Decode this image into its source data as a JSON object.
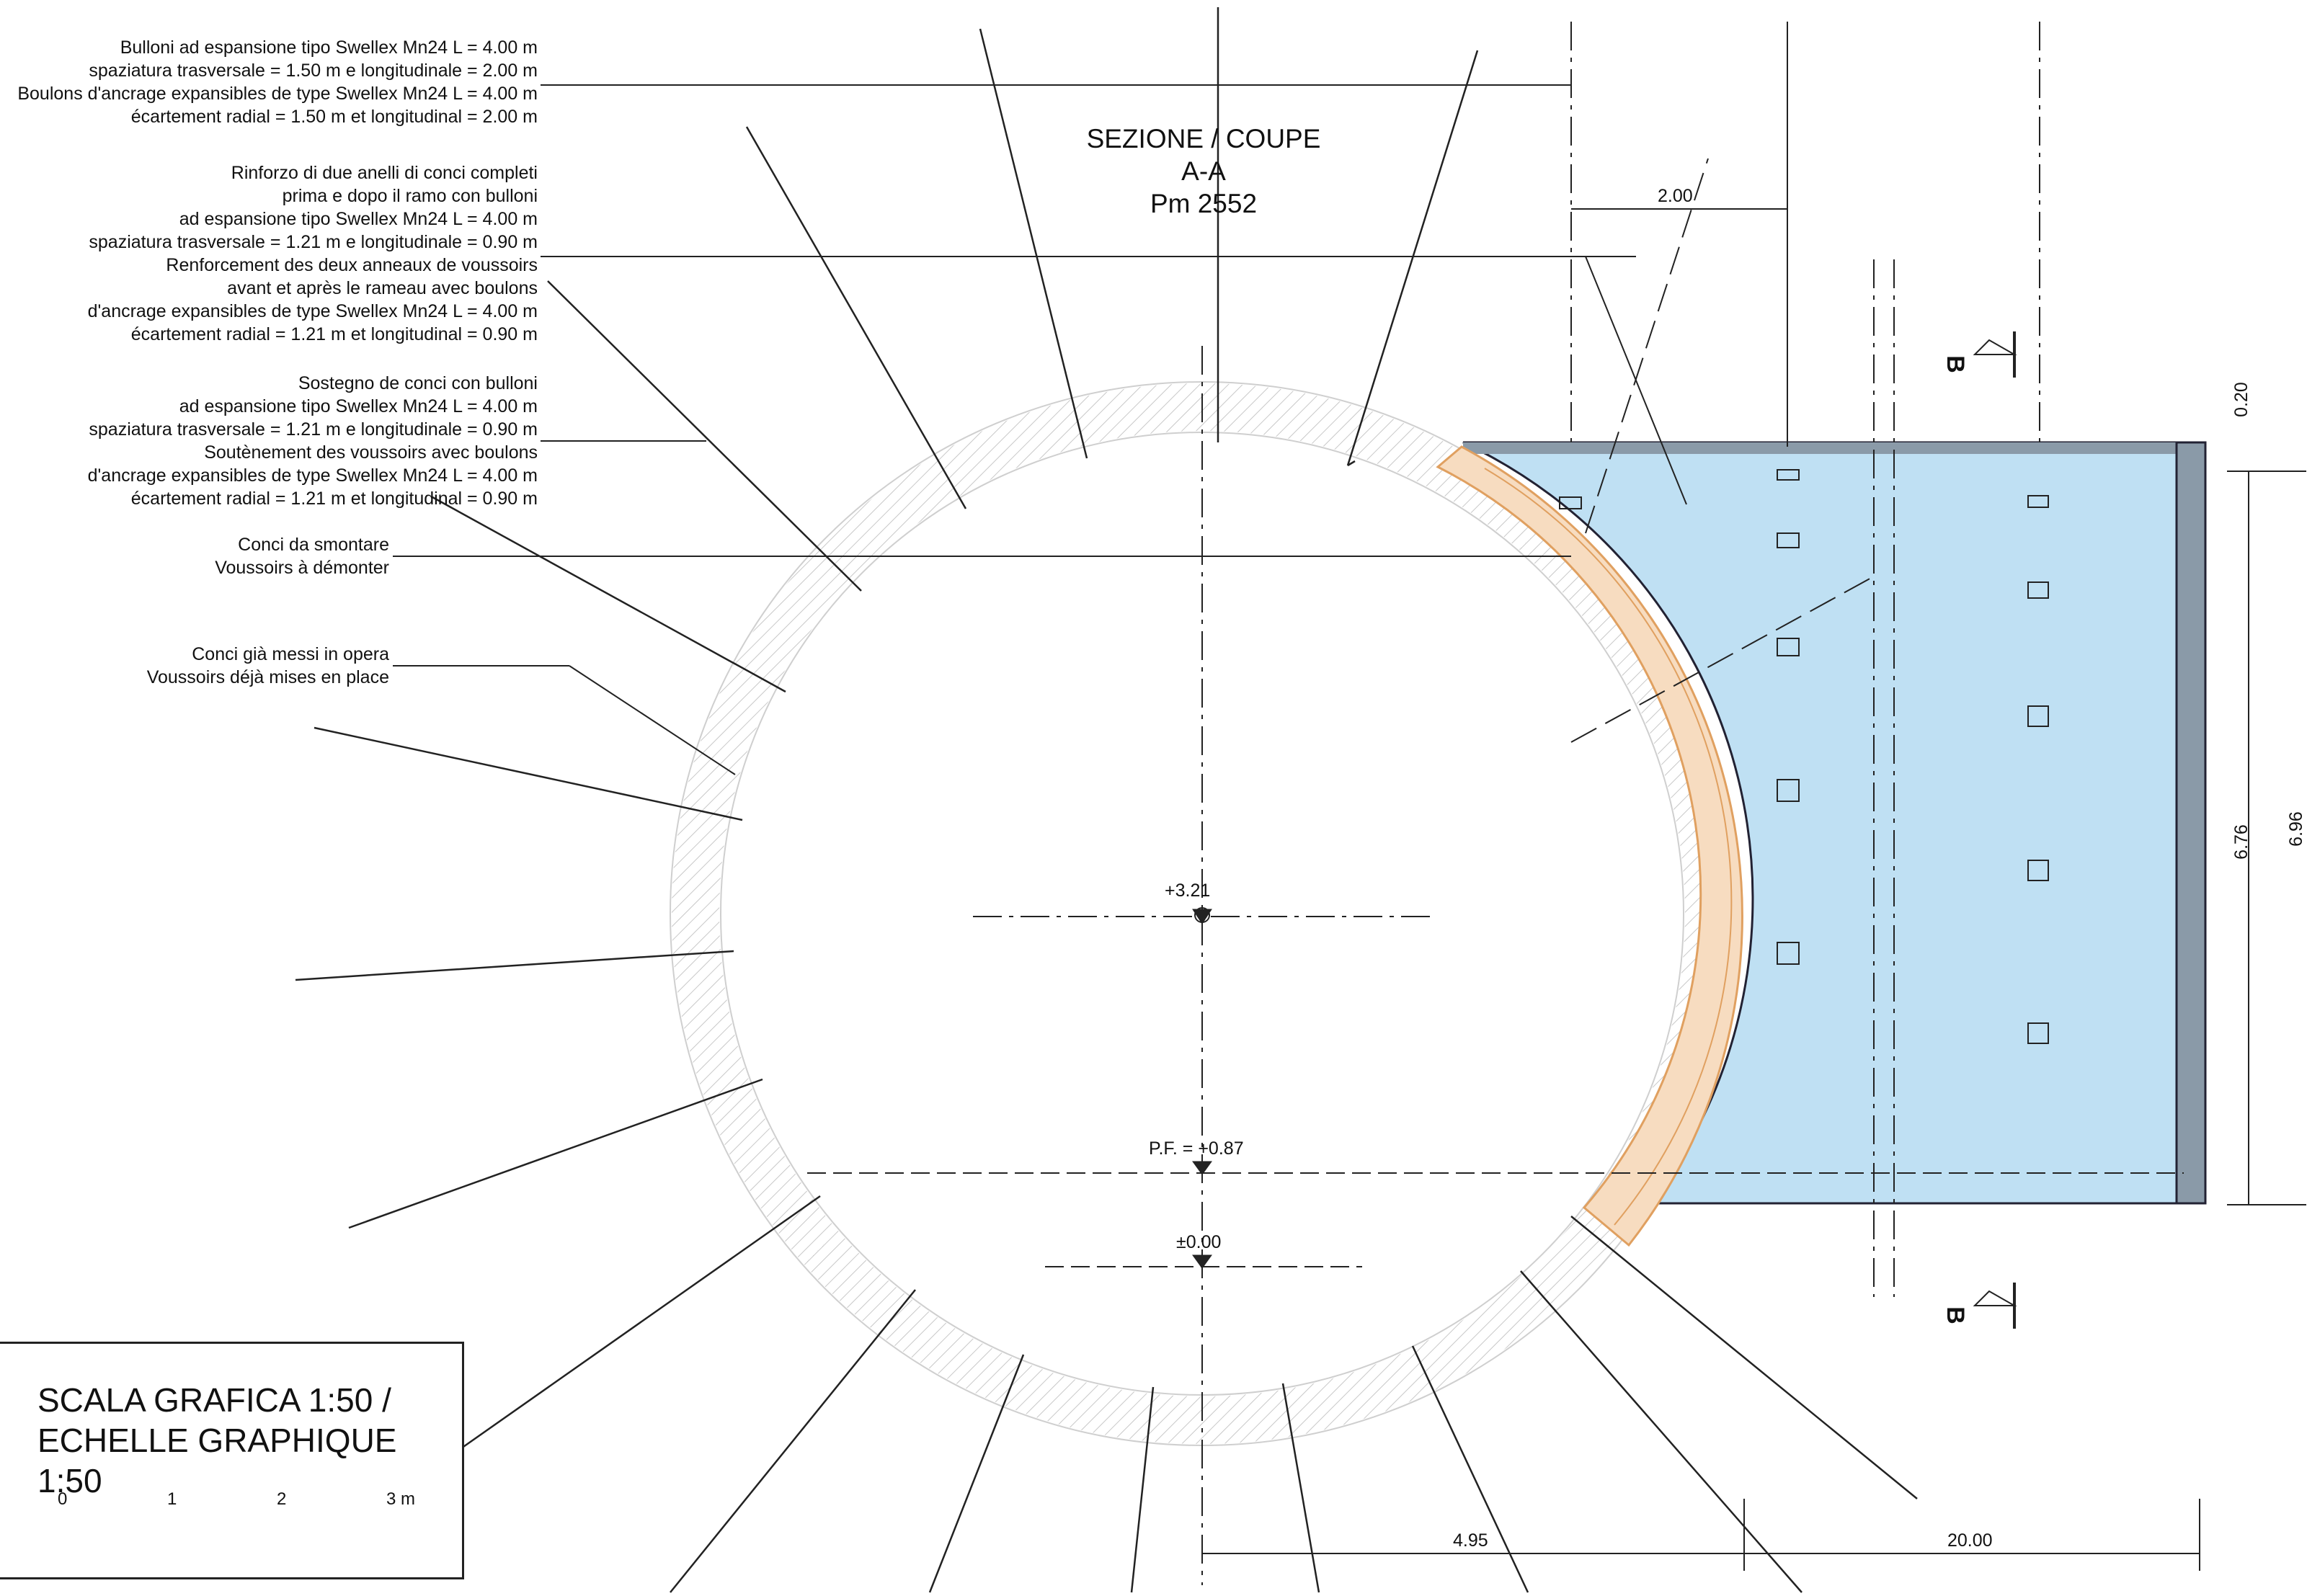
{
  "title": {
    "line1": "SEZIONE  / COUPE",
    "line2": "A-A",
    "line3": "Pm 2552"
  },
  "notes": {
    "bolts_1": [
      "Bulloni ad espansione tipo Swellex Mn24 L = 4.00 m",
      "spaziatura trasversale = 1.50 m e longitudinale = 2.00 m",
      "Boulons d'ancrage expansibles de type Swellex Mn24 L = 4.00 m",
      "écartement radial = 1.50 m et longitudinal = 2.00 m"
    ],
    "reinforcement": [
      "Rinforzo di due anelli di conci completi",
      "prima e dopo il ramo con bulloni",
      "ad espansione tipo Swellex Mn24 L = 4.00 m",
      "spaziatura trasversale = 1.21 m e longitudinale = 0.90 m",
      "Renforcement des deux anneaux de voussoirs",
      "avant et après le rameau avec boulons",
      "d'ancrage expansibles de type Swellex Mn24 L = 4.00 m",
      "écartement radial = 1.21 m et longitudinal = 0.90 m"
    ],
    "support": [
      "Sostegno de conci con bulloni",
      "ad espansione tipo Swellex Mn24 L = 4.00 m",
      "spaziatura trasversale = 1.21 m e longitudinale = 0.90 m",
      "Soutènement des voussoirs avec boulons",
      "d'ancrage expansibles de type Swellex Mn24 L = 4.00 m",
      "écartement radial = 1.21 m et longitudinal = 0.90 m"
    ],
    "dismantle": [
      "Conci da smontare",
      "Voussoirs à démonter"
    ],
    "installed": [
      "Conci già messi in opera",
      "Voussoirs déjà mises en place"
    ]
  },
  "levels": {
    "crown": "+3.21",
    "platform": "P.F. = +0.87",
    "zero": "±0.00"
  },
  "dimensions": {
    "top_spacing": "2.00",
    "top_thickness": "0.20",
    "inner_height": "6.76",
    "outer_height": "6.96",
    "radius_offset": "4.95",
    "length": "20.00"
  },
  "section_marker": "B",
  "scale": {
    "line1": "SCALA GRAFICA 1:50 /",
    "line2": "ECHELLE GRAPHIQUE 1:50",
    "ticks": [
      "0",
      "1",
      "2",
      "3 m"
    ]
  },
  "colors": {
    "gallery_fill": "#bfe0f3",
    "dismantle_fill": "#f7dcc0",
    "dismantle_stroke": "#e0a060",
    "wall": "#7a8a96"
  }
}
